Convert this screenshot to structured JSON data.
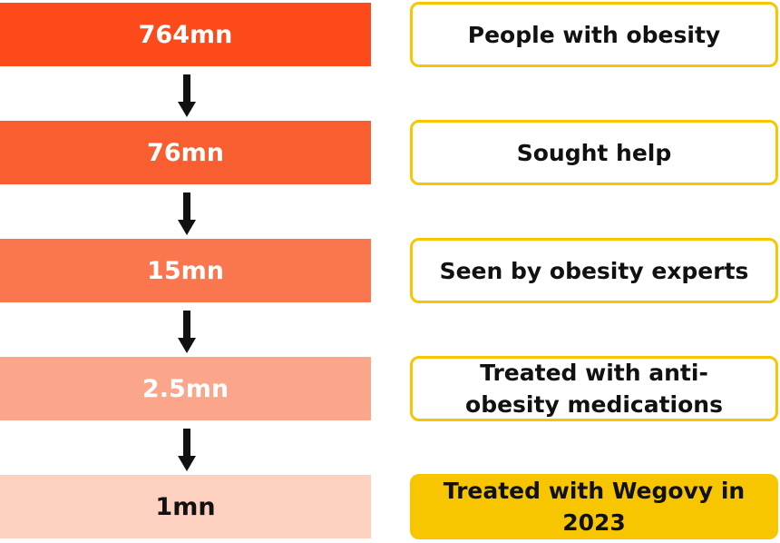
{
  "stages": [
    {
      "value": "764mn",
      "label": "People with obesity"
    },
    {
      "value": "76mn",
      "label": "Sought help"
    },
    {
      "value": "15mn",
      "label": "Seen by obesity experts"
    },
    {
      "value": "2.5mn",
      "label": "Treated with anti-\nobesity medications"
    },
    {
      "value": "1mn",
      "label": "Treated with Wegovy in\n2023"
    }
  ]
}
